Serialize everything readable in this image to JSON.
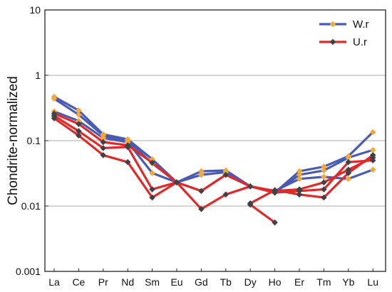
{
  "chart_data": {
    "type": "line",
    "ylabel": "Chondrite-normalized",
    "yscale": "log",
    "ylim": [
      0.001,
      10
    ],
    "y_ticks": [
      "10",
      "1",
      "0.1",
      "0.01",
      "0.001"
    ],
    "y_tick_values": [
      10,
      1,
      0.1,
      0.01,
      0.001
    ],
    "categories": [
      "La",
      "Ce",
      "Pr",
      "Nd",
      "Sm",
      "Eu",
      "Gd",
      "Tb",
      "Dy",
      "Ho",
      "Er",
      "Tm",
      "Yb",
      "Lu"
    ],
    "grid": "horizontal",
    "legend_position": "top-right",
    "legend": [
      {
        "label": "W.r",
        "line_color": "#4a5bb1",
        "marker_color": "#f2a93b"
      },
      {
        "label": "U.r",
        "line_color": "#e02a2a",
        "marker_color": "#3f4347"
      }
    ],
    "series": [
      {
        "legend": "W.r",
        "values": [
          0.47,
          0.29,
          0.125,
          0.105,
          0.052,
          0.023,
          0.034,
          0.035,
          0.02,
          0.016,
          0.034,
          0.04,
          0.058,
          0.135
        ]
      },
      {
        "legend": "W.r",
        "values": [
          0.44,
          0.25,
          0.12,
          0.1,
          0.045,
          0.023,
          0.03,
          0.033,
          0.02,
          0.016,
          0.03,
          0.035,
          0.055,
          0.072
        ]
      },
      {
        "legend": "W.r",
        "values": [
          0.28,
          0.2,
          0.11,
          0.095,
          0.032,
          0.023,
          0.017,
          0.03,
          0.02,
          0.017,
          0.026,
          0.028,
          0.026,
          0.036
        ]
      },
      {
        "legend": "U.r",
        "values": [
          0.26,
          0.18,
          0.095,
          0.085,
          0.046,
          0.023,
          0.017,
          0.03,
          0.02,
          0.017,
          0.018,
          0.023,
          0.036,
          0.055
        ]
      },
      {
        "legend": "U.r",
        "values": [
          0.24,
          0.14,
          0.077,
          0.08,
          0.018,
          0.023,
          0.009,
          0.015,
          0.02,
          0.016,
          0.017,
          0.018,
          0.047,
          0.05
        ]
      },
      {
        "legend": "U.r",
        "values": [
          0.22,
          0.12,
          0.06,
          0.047,
          0.0135,
          0.023,
          null,
          null,
          0.011,
          0.0175,
          0.015,
          0.0135,
          0.032,
          0.06
        ]
      },
      {
        "legend": "U.r",
        "values": [
          null,
          null,
          null,
          null,
          null,
          null,
          null,
          null,
          0.0105,
          0.0056,
          null,
          null,
          null,
          null
        ]
      }
    ]
  }
}
